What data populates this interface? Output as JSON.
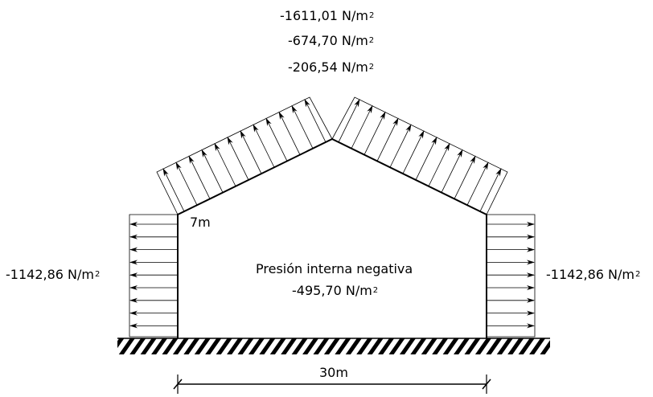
{
  "roof_pressures": {
    "p1": {
      "value": "-1611,01 N/m",
      "exp": "2"
    },
    "p2": {
      "value": "-674,70 N/m",
      "exp": "2"
    },
    "p3": {
      "value": "-206,54 N/m",
      "exp": "2"
    }
  },
  "left_wall": {
    "value": "-1142,86 N/m",
    "exp": "2"
  },
  "right_wall": {
    "value": "-1142,86 N/m",
    "exp": "2"
  },
  "internal": {
    "title": "Presión interna negativa",
    "value": "-495,70 N/m",
    "exp": "2"
  },
  "dimensions": {
    "height": "7m",
    "width": "30m"
  },
  "colors": {
    "line": "#000000",
    "arrow": "#000000"
  }
}
